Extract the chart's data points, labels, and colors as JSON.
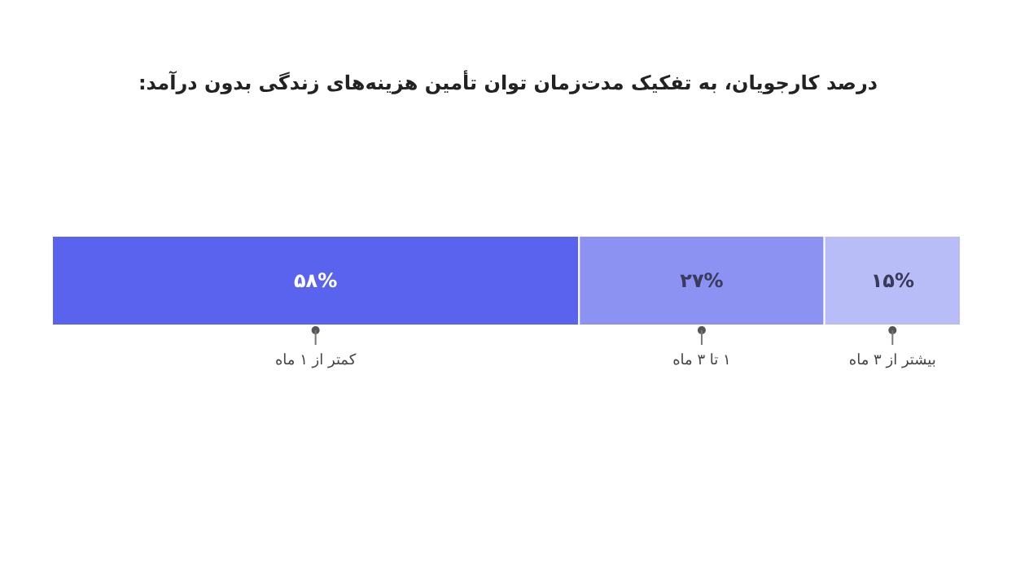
{
  "chart_data": {
    "type": "bar",
    "title": "درصد کارجویان، به تفکیک مدت‌زمان توان تأمین هزینه‌های زندگی بدون درآمد:",
    "orientation": "horizontal",
    "stacked": true,
    "categories": [
      null
    ],
    "series": [
      {
        "name": "کمتر از ۱ ماه",
        "color": "#5a63ee",
        "values": [
          58
        ],
        "value_labels": [
          "۵۸%"
        ]
      },
      {
        "name": "۱ تا ۳ ماه",
        "color": "#8b92f2",
        "values": [
          27
        ],
        "value_labels": [
          "۲۷%"
        ]
      },
      {
        "name": "بیشتر از ۳ ماه",
        "color": "#b8bdf7",
        "values": [
          15
        ],
        "value_labels": [
          "۱۵%"
        ]
      }
    ]
  }
}
